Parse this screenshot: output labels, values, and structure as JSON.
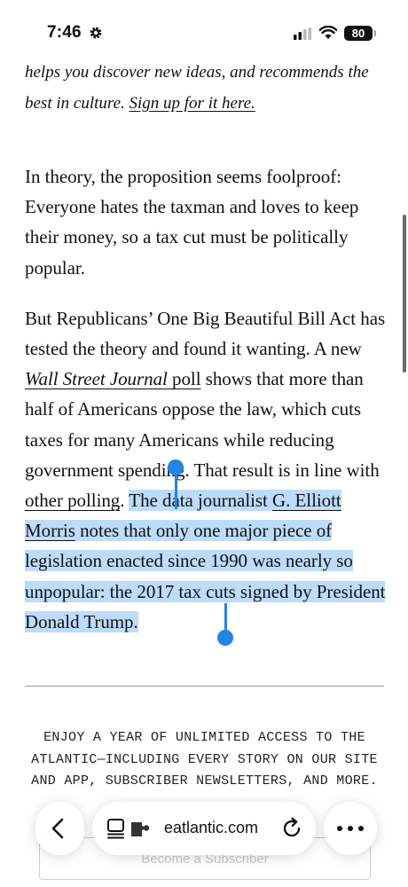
{
  "status_bar": {
    "time": "7:46",
    "battery": "80"
  },
  "article": {
    "promo": {
      "text_before": "helps you discover new ideas, and recommends the best in culture. ",
      "link": "Sign up for it here."
    },
    "paragraph1": "In theory, the proposition seems foolproof: Everyone hates the taxman and loves to keep their money, so a tax cut must be politically popular.",
    "paragraph2": {
      "part1": "But Republicans’ One Big Beautiful Bill Act has tested the theory and found it wanting. A new ",
      "wsj_link": "Wall Street Journal",
      "poll_link": " poll",
      "part2": " shows that more than half of Americans oppose the law, which cuts taxes for many Americans while reducing government spending. That result is in line with ",
      "other_polling_link": "other polling",
      "part3": ". ",
      "selected_part1": "The data journalist ",
      "morris_link": "G. Elliott Morris",
      "selected_part2": " notes that only one major piece of legislation enacted since 1990 was nearly so unpopular: the 2017 tax cuts signed by President Donald Trump."
    }
  },
  "subscribe": {
    "text": "ENJOY A YEAR OF UNLIMITED ACCESS TO THE ATLANTIC—INCLUDING EVERY STORY ON OUR SITE AND APP, SUBSCRIBER NEWSLETTERS, AND MORE.",
    "button": "Become a Subscriber"
  },
  "toolbar": {
    "url": "eatlantic.com"
  },
  "icons": [
    "gear-icon",
    "signal-icon",
    "wifi-icon",
    "back-icon",
    "reader-icon",
    "extension-icon",
    "reload-icon",
    "more-icon"
  ]
}
